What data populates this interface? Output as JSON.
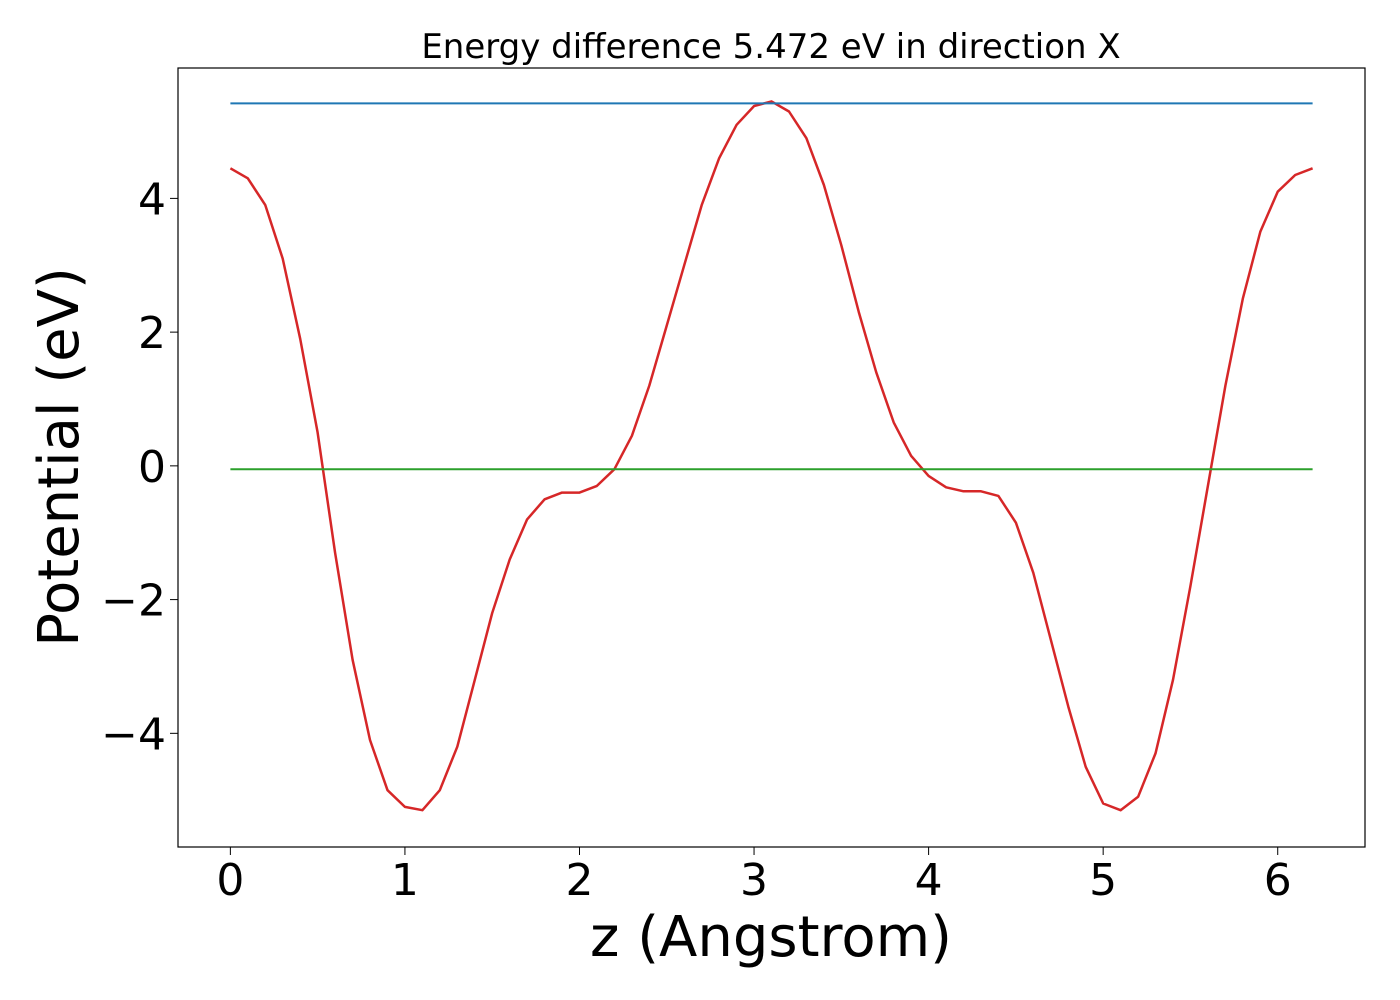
{
  "chart_data": {
    "type": "line",
    "title": "Energy difference 5.472 eV in direction X",
    "xlabel": "z (Angstrom)",
    "ylabel": "Potential (eV)",
    "xlim": [
      -0.3,
      6.5
    ],
    "ylim": [
      -5.7,
      5.95
    ],
    "x_ticks": [
      {
        "value": 0,
        "label": "0"
      },
      {
        "value": 1,
        "label": "1"
      },
      {
        "value": 2,
        "label": "2"
      },
      {
        "value": 3,
        "label": "3"
      },
      {
        "value": 4,
        "label": "4"
      },
      {
        "value": 5,
        "label": "5"
      },
      {
        "value": 6,
        "label": "6"
      }
    ],
    "y_ticks": [
      {
        "value": -4,
        "label": "−4"
      },
      {
        "value": -2,
        "label": "−2"
      },
      {
        "value": 0,
        "label": "0"
      },
      {
        "value": 2,
        "label": "2"
      },
      {
        "value": 4,
        "label": "4"
      }
    ],
    "grid": false,
    "series": [
      {
        "color": "#d62728",
        "x": [
          0,
          0.1,
          0.2,
          0.3,
          0.4,
          0.5,
          0.6,
          0.7,
          0.8,
          0.9,
          1.0,
          1.1,
          1.2,
          1.3,
          1.4,
          1.5,
          1.6,
          1.7,
          1.8,
          1.9,
          2.0,
          2.1,
          2.2,
          2.3,
          2.4,
          2.5,
          2.6,
          2.7,
          2.8,
          2.9,
          3.0,
          3.1,
          3.2,
          3.3,
          3.4,
          3.5,
          3.6,
          3.7,
          3.8,
          3.9,
          4.0,
          4.1,
          4.2,
          4.3,
          4.4,
          4.5,
          4.6,
          4.7,
          4.8,
          4.9,
          5.0,
          5.1,
          5.2,
          5.3,
          5.4,
          5.5,
          5.6,
          5.7,
          5.8,
          5.9,
          6.0,
          6.1,
          6.2
        ],
        "y": [
          4.45,
          4.3,
          3.9,
          3.1,
          1.9,
          0.5,
          -1.3,
          -2.9,
          -4.1,
          -4.85,
          -5.1,
          -5.15,
          -4.85,
          -4.2,
          -3.2,
          -2.2,
          -1.4,
          -0.8,
          -0.5,
          -0.4,
          -0.4,
          -0.3,
          -0.05,
          0.45,
          1.2,
          2.1,
          3.0,
          3.9,
          4.6,
          5.1,
          5.38,
          5.45,
          5.3,
          4.9,
          4.2,
          3.3,
          2.3,
          1.4,
          0.65,
          0.15,
          -0.15,
          -0.32,
          -0.38,
          -0.38,
          -0.45,
          -0.85,
          -1.6,
          -2.6,
          -3.6,
          -4.5,
          -5.05,
          -5.15,
          -4.95,
          -4.3,
          -3.2,
          -1.8,
          -0.3,
          1.2,
          2.5,
          3.5,
          4.1,
          4.35,
          4.45
        ]
      },
      {
        "color": "#1f77b4",
        "x": [
          0,
          6.2
        ],
        "y": [
          5.42,
          5.42
        ]
      },
      {
        "color": "#2ca02c",
        "x": [
          0,
          6.2
        ],
        "y": [
          -0.05,
          -0.05
        ]
      }
    ]
  }
}
